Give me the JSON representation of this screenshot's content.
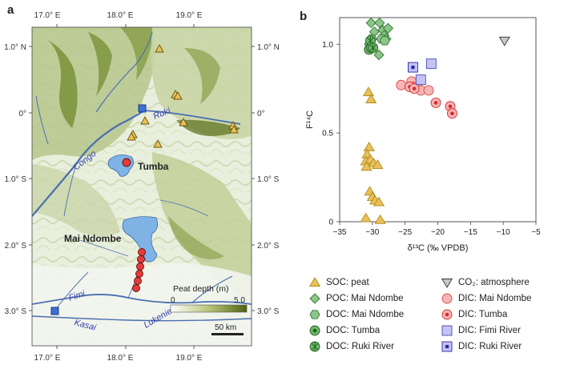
{
  "panel_a": {
    "letter": "a",
    "lon_labels": [
      "17.0° E",
      "18.0° E",
      "19.0° E"
    ],
    "lat_labels_left": [
      "1.0° N",
      "0°",
      "1.0° S",
      "2.0° S",
      "3.0° S"
    ],
    "lat_labels_right": [
      "1.0° N",
      "0°",
      "1.0° S",
      "2.0° S",
      "3.0° S"
    ],
    "places": {
      "tumba": "Tumba",
      "mai_ndombe": "Mai Ndombe"
    },
    "rivers": {
      "congo": "Congo",
      "ruki": "Ruki",
      "fimi": "Fimi",
      "kasai": "Kasai",
      "lukenie": "Lukenie"
    },
    "peat_legend": {
      "title": "Peat depth (m)",
      "min": "0",
      "max": "5.0"
    },
    "scale_bar": "50 km",
    "colors": {
      "peat_dark": "#5a6e1a",
      "lake": "#7fb3e6",
      "river": "#4a6fb0"
    }
  },
  "panel_b": {
    "letter": "b"
  },
  "chart_data": {
    "type": "scatter",
    "xlabel": "δ¹³C (‰ VPDB)",
    "ylabel": "F¹⁴C",
    "xlim": [
      -35,
      -5
    ],
    "ylim": [
      0,
      1.15
    ],
    "xticks": [
      -35,
      -30,
      -25,
      -20,
      -15,
      -10,
      -5
    ],
    "yticks": [
      0,
      0.5,
      1.0
    ],
    "xtick_labels": [
      "−35",
      "−30",
      "−25",
      "−20",
      "−15",
      "−10",
      "−5"
    ],
    "ytick_labels": [
      "0",
      "0.5",
      "1.0"
    ],
    "grid": false,
    "legend_position": "below",
    "series": [
      {
        "name": "SOC: peat",
        "marker": "triangle-up",
        "color": "#e8c15a",
        "stroke": "#b08a1a",
        "points": [
          [
            -30.6,
            0.73
          ],
          [
            -30.2,
            0.69
          ],
          [
            -30.5,
            0.42
          ],
          [
            -30.8,
            0.38
          ],
          [
            -31.0,
            0.34
          ],
          [
            -30.3,
            0.35
          ],
          [
            -29.8,
            0.33
          ],
          [
            -29.2,
            0.32
          ],
          [
            -30.9,
            0.31
          ],
          [
            -30.4,
            0.17
          ],
          [
            -30.0,
            0.14
          ],
          [
            -29.6,
            0.12
          ],
          [
            -29.0,
            0.11
          ],
          [
            -31.0,
            0.02
          ],
          [
            -28.8,
            0.01
          ]
        ]
      },
      {
        "name": "POC: Mai Ndombe",
        "marker": "diamond",
        "color": "#8ec48a",
        "stroke": "#2f7a2f",
        "points": [
          [
            -30.2,
            1.12
          ],
          [
            -28.9,
            1.12
          ],
          [
            -28.4,
            1.08
          ],
          [
            -27.6,
            1.09
          ],
          [
            -29.7,
            1.07
          ],
          [
            -28.2,
            1.05
          ],
          [
            -27.9,
            1.03
          ],
          [
            -30.5,
            1.0
          ],
          [
            -29.0,
            0.94
          ]
        ]
      },
      {
        "name": "DOC: Mai Ndombe",
        "marker": "hexagon",
        "color": "#8ec48a",
        "stroke": "#2f7a2f",
        "points": [
          [
            -28.6,
            1.03
          ],
          [
            -28.1,
            1.02
          ],
          [
            -30.1,
            1.03
          ]
        ]
      },
      {
        "name": "DOC: Tumba",
        "marker": "circle-dot",
        "color": "#6fb56a",
        "stroke": "#1f5f1f",
        "points": [
          [
            -30.5,
            0.97
          ],
          [
            -30.2,
            0.98
          ]
        ]
      },
      {
        "name": "DOC: Ruki River",
        "marker": "circle-cross",
        "color": "#6fb56a",
        "stroke": "#1f5f1f",
        "points": [
          [
            -30.3,
            1.02
          ],
          [
            -29.9,
            0.98
          ]
        ]
      },
      {
        "name": "CO₂: atmosphere",
        "marker": "triangle-down",
        "color": "#c8c8c8",
        "stroke": "#333333",
        "points": [
          [
            -9.8,
            1.02
          ]
        ]
      },
      {
        "name": "DIC: Mai Ndombe",
        "marker": "circle",
        "color": "#f7b5b5",
        "stroke": "#d64a4a",
        "points": [
          [
            -25.6,
            0.77
          ],
          [
            -24.0,
            0.79
          ],
          [
            -23.8,
            0.76
          ],
          [
            -23.2,
            0.76
          ],
          [
            -22.6,
            0.74
          ],
          [
            -21.4,
            0.74
          ]
        ]
      },
      {
        "name": "DIC: Tumba",
        "marker": "circle-dot",
        "color": "#f7b5b5",
        "stroke": "#d62a2a",
        "points": [
          [
            -24.3,
            0.76
          ],
          [
            -23.6,
            0.75
          ],
          [
            -20.3,
            0.67
          ],
          [
            -18.1,
            0.65
          ],
          [
            -17.8,
            0.61
          ]
        ]
      },
      {
        "name": "DIC: Fimi River",
        "marker": "square",
        "color": "#c4c4f2",
        "stroke": "#4a4ab8",
        "points": [
          [
            -21.0,
            0.89
          ],
          [
            -22.6,
            0.8
          ]
        ]
      },
      {
        "name": "DIC: Ruki River",
        "marker": "square-dot",
        "color": "#c4c4f2",
        "stroke": "#2a2aa8",
        "points": [
          [
            -23.8,
            0.87
          ]
        ]
      }
    ]
  }
}
